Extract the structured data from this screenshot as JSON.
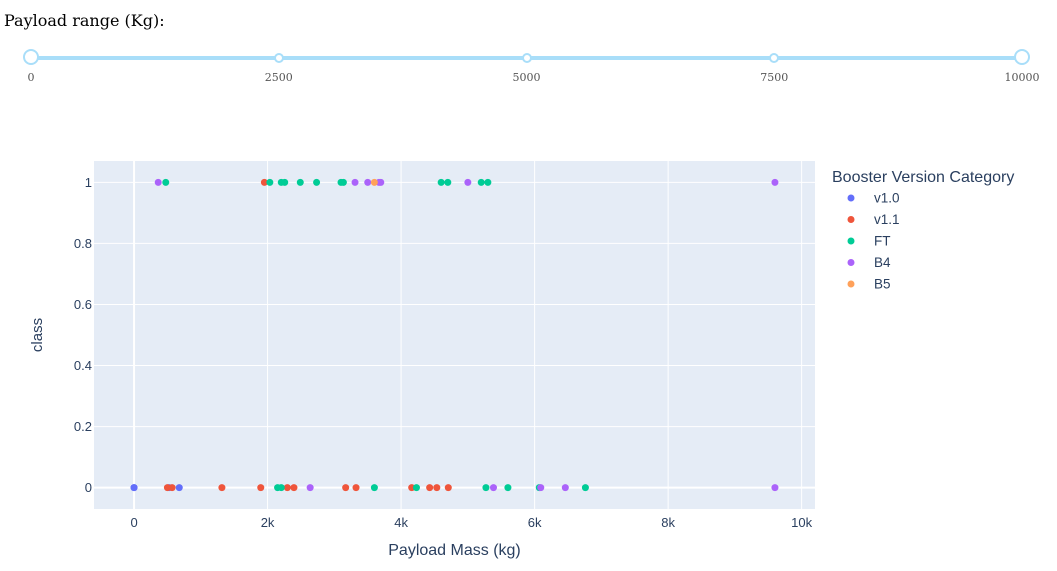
{
  "slider": {
    "label": "Payload range (Kg):",
    "min": 0,
    "max": 10000,
    "value_low": 0,
    "value_high": 10000,
    "marks": [
      "0",
      "2500",
      "5000",
      "7500",
      "10000"
    ],
    "mark_values": [
      0,
      2500,
      5000,
      7500,
      10000
    ],
    "colors": {
      "rail": "#a9def9"
    }
  },
  "chart_data": {
    "type": "scatter",
    "xlabel": "Payload Mass (kg)",
    "ylabel": "class",
    "xlim": [
      -600,
      10200
    ],
    "ylim": [
      -0.07,
      1.07
    ],
    "x_ticks": [
      0,
      2000,
      4000,
      6000,
      8000,
      10000
    ],
    "x_tick_labels": [
      "0",
      "2k",
      "4k",
      "6k",
      "8k",
      "10k"
    ],
    "y_ticks": [
      0,
      0.2,
      0.4,
      0.6,
      0.8,
      1
    ],
    "y_tick_labels": [
      "0",
      "0.2",
      "0.4",
      "0.6",
      "0.8",
      "1"
    ],
    "grid": true,
    "legend": {
      "title": "Booster Version Category",
      "placement": "right"
    },
    "series": [
      {
        "name": "v1.0",
        "color": "#636efa",
        "x": [
          0,
          0,
          525,
          677
        ],
        "y": [
          0,
          0,
          0,
          0
        ]
      },
      {
        "name": "v1.1",
        "color": "#ef553b",
        "x": [
          500,
          570,
          1316,
          1898,
          2296,
          2395,
          3170,
          3325,
          4159,
          4428,
          4535,
          4707,
          1952
        ],
        "y": [
          0,
          0,
          0,
          0,
          0,
          0,
          0,
          0,
          0,
          0,
          0,
          0,
          1
        ]
      },
      {
        "name": "FT",
        "color": "#00cc96",
        "x": [
          2150,
          2205,
          3600,
          4230,
          5271,
          5600,
          6070,
          6761,
          475,
          2034,
          2205,
          2257,
          2490,
          2734,
          3100,
          3136,
          4600,
          4700,
          5200,
          5300
        ],
        "y": [
          0,
          0,
          0,
          0,
          0,
          0,
          0,
          0,
          1,
          1,
          1,
          1,
          1,
          1,
          1,
          1,
          1,
          1,
          1,
          1
        ]
      },
      {
        "name": "B4",
        "color": "#ab63fa",
        "x": [
          2638,
          5384,
          6092,
          6460,
          9600,
          362,
          3310,
          3500,
          3669,
          3696,
          5000,
          9600
        ],
        "y": [
          0,
          0,
          0,
          0,
          0,
          1,
          1,
          1,
          1,
          1,
          1,
          1
        ]
      },
      {
        "name": "B5",
        "color": "#ffa15a",
        "x": [
          3600
        ],
        "y": [
          1
        ]
      }
    ]
  }
}
